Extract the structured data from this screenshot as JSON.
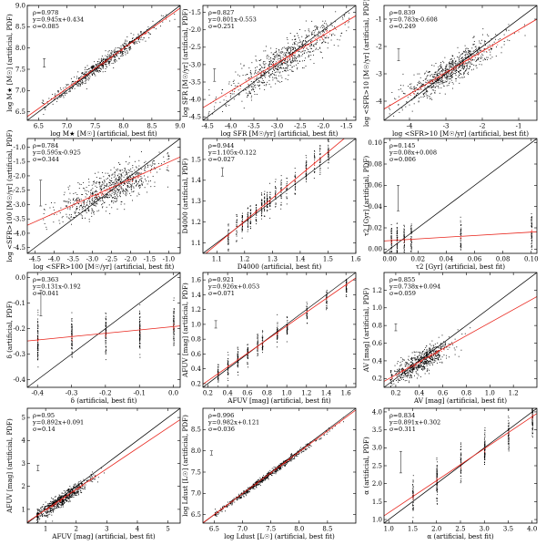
{
  "chart_data": [
    {
      "id": "p1",
      "type": "scatter",
      "title": "",
      "xlabel": "log M★ [M☉] (artificial, best fit)",
      "ylabel": "log M★ [M☉] (artificial, PDF)",
      "xlim": [
        6.3,
        9.0
      ],
      "ylim": [
        6.3,
        9.0
      ],
      "xticks": [
        6.5,
        7.0,
        7.5,
        8.0,
        8.5,
        9.0
      ],
      "yticks": [
        6.5,
        7.0,
        7.5,
        8.0,
        8.5,
        9.0
      ],
      "stats": [
        "ρ=0.978",
        "y=0.945x+0.434",
        "σ=0.085"
      ],
      "fit": {
        "slope": 0.945,
        "intercept": 0.434
      },
      "cloud": {
        "x_center": 7.6,
        "x_spread": 0.45,
        "scatter": 0.08,
        "clip_min": 6.55,
        "clip_max": 8.9,
        "n": 650,
        "kind": "normal"
      },
      "errorbar": {
        "x": 6.6,
        "y": 7.65,
        "dy": 0.1
      }
    },
    {
      "id": "p2",
      "type": "scatter",
      "title": "",
      "xlabel": "log SFR [M☉/yr] (artificial, best fit)",
      "ylabel": "log SFR [M☉/yr] (artificial, PDF)",
      "xlim": [
        -4.6,
        -1.3
      ],
      "ylim": [
        -4.6,
        -1.3
      ],
      "xticks": [
        -4.5,
        -4.0,
        -3.5,
        -3.0,
        -2.5,
        -2.0,
        -1.5
      ],
      "yticks": [
        -4.5,
        -4.0,
        -3.5,
        -3.0,
        -2.5,
        -2.0,
        -1.5
      ],
      "stats": [
        "ρ=0.827",
        "y=0.801x-0.553",
        "σ=0.251"
      ],
      "fit": {
        "slope": 0.801,
        "intercept": -0.553
      },
      "cloud": {
        "x_center": -2.9,
        "x_spread": 0.6,
        "scatter": 0.25,
        "clip_min": -4.5,
        "clip_max": -1.45,
        "n": 800,
        "kind": "normal"
      },
      "errorbar": {
        "x": -4.35,
        "y": -3.3,
        "dy": 0.18
      }
    },
    {
      "id": "p3",
      "type": "scatter",
      "title": "",
      "xlabel": "log <SFR>10 [M☉/yr] (artificial, best fit)",
      "ylabel": "log <SFR>10 [M☉/yr] (artificial, PDF)",
      "xlim": [
        -4.7,
        -0.5
      ],
      "ylim": [
        -4.7,
        -0.5
      ],
      "xticks": [
        -4,
        -3,
        -2,
        -1
      ],
      "yticks": [
        -4,
        -3,
        -2,
        -1
      ],
      "stats": [
        "ρ=0.839",
        "y=0.783x-0.608",
        "σ=0.249"
      ],
      "fit": {
        "slope": 0.783,
        "intercept": -0.608
      },
      "cloud": {
        "x_center": -2.9,
        "x_spread": 0.65,
        "scatter": 0.25,
        "clip_min": -4.6,
        "clip_max": -0.8,
        "n": 800,
        "kind": "normal"
      },
      "errorbar": {
        "x": -4.3,
        "y": -2.3,
        "dy": 0.22
      }
    },
    {
      "id": "p4",
      "type": "scatter",
      "title": "",
      "xlabel": "log <SFR>100 [M☉/yr] (artificial, best fit)",
      "ylabel": "log <SFR>100 [M☉/yr] (artificial, PDF)",
      "xlim": [
        -4.7,
        -0.7
      ],
      "ylim": [
        -4.7,
        -0.7
      ],
      "xticks": [
        -4.5,
        -4.0,
        -3.5,
        -3.0,
        -2.5,
        -2.0,
        -1.5,
        -1.0
      ],
      "yticks": [
        -4.5,
        -4.0,
        -3.5,
        -3.0,
        -2.5,
        -2.0,
        -1.5,
        -1.0
      ],
      "stats": [
        "ρ=0.784",
        "y=0.595x-0.925",
        "σ=0.344"
      ],
      "fit": {
        "slope": 0.595,
        "intercept": -0.925
      },
      "cloud": {
        "x_center": -2.6,
        "x_spread": 0.7,
        "scatter": 0.3,
        "clip_min": -4.3,
        "clip_max": -1.0,
        "n": 800,
        "kind": "normal"
      },
      "errorbar": {
        "x": -4.35,
        "y": -2.6,
        "dy": 0.45
      }
    },
    {
      "id": "p5",
      "type": "scatter",
      "title": "",
      "xlabel": "D4000 (artificial, best fit)",
      "ylabel": "D4000 (artificial, PDF)",
      "xlim": [
        1.05,
        1.6
      ],
      "ylim": [
        1.05,
        1.6
      ],
      "xticks": [
        1.1,
        1.2,
        1.3,
        1.4,
        1.5,
        1.6
      ],
      "yticks": [
        1.1,
        1.2,
        1.3,
        1.4,
        1.5
      ],
      "stats": [
        "ρ=0.944",
        "y=1.105x-0.122",
        "σ=0.027"
      ],
      "fit": {
        "slope": 1.105,
        "intercept": -0.122
      },
      "cloud": {
        "columns": [
          1.14,
          1.17,
          1.19,
          1.21,
          1.22,
          1.24,
          1.26,
          1.27,
          1.28,
          1.29,
          1.31,
          1.33,
          1.35,
          1.38,
          1.42,
          1.45,
          1.47,
          1.5
        ],
        "scatter": 0.03,
        "n": 600,
        "kind": "columns"
      },
      "errorbar": {
        "x": 1.12,
        "y": 1.44,
        "dy": 0.02
      }
    },
    {
      "id": "p6",
      "type": "scatter",
      "title": "",
      "xlabel": "τ2 [Gyr] (artificial, best fit)",
      "ylabel": "τ2 [Gyr] (artificial, PDF)",
      "xlim": [
        -0.004,
        0.104
      ],
      "ylim": [
        -0.004,
        0.104
      ],
      "xticks": [
        0.0,
        0.02,
        0.04,
        0.06,
        0.08,
        0.1
      ],
      "yticks": [
        0.0,
        0.02,
        0.04,
        0.06,
        0.08,
        0.1
      ],
      "stats": [
        "ρ=0.145",
        "y=0.08x+0.008",
        "σ=0.006"
      ],
      "fit": {
        "slope": 0.08,
        "intercept": 0.008
      },
      "cloud": {
        "columns": [
          0.001,
          0.005,
          0.01,
          0.015,
          0.05,
          0.1
        ],
        "scatter": 0.008,
        "n": 320,
        "kind": "columns"
      },
      "errorbar": {
        "x": 0.006,
        "y": 0.048,
        "dy": 0.012
      }
    },
    {
      "id": "p7",
      "type": "scatter",
      "title": "",
      "xlabel": "δ (artificial, best fit)",
      "ylabel": "δ (artificial, PDF)",
      "xlim": [
        -0.43,
        0.02
      ],
      "ylim": [
        -0.43,
        0.02
      ],
      "xticks": [
        -0.4,
        -0.3,
        -0.2,
        -0.1,
        0.0
      ],
      "yticks": [
        -0.4,
        -0.3,
        -0.2,
        -0.1,
        0.0
      ],
      "stats": [
        "ρ=0.363",
        "y=0.131x-0.192",
        "σ=0.041"
      ],
      "fit": {
        "slope": 0.131,
        "intercept": -0.192
      },
      "cloud": {
        "columns": [
          -0.4,
          -0.3,
          -0.2,
          -0.1,
          0.0
        ],
        "scatter": 0.04,
        "n": 420,
        "kind": "columns"
      },
      "errorbar": {
        "x": -0.39,
        "y": -0.1,
        "dy": 0.05
      }
    },
    {
      "id": "p8",
      "type": "scatter",
      "title": "",
      "xlabel": "AFUV [mag] (artificial, best fit)",
      "ylabel": "AFUV [mag] (artificial, PDF)",
      "xlim": [
        0.15,
        1.7
      ],
      "ylim": [
        0.15,
        1.7
      ],
      "xticks": [
        0.2,
        0.4,
        0.6,
        0.8,
        1.0,
        1.2,
        1.4,
        1.6
      ],
      "yticks": [
        0.2,
        0.4,
        0.6,
        0.8,
        1.0,
        1.2,
        1.4,
        1.6
      ],
      "stats": [
        "ρ=0.921",
        "y=0.926x+0.053",
        "σ=0.071"
      ],
      "fit": {
        "slope": 0.926,
        "intercept": 0.053
      },
      "cloud": {
        "columns": [
          0.3,
          0.4,
          0.5,
          0.6,
          0.7,
          0.75,
          0.9,
          1.0,
          1.2,
          1.4,
          1.6
        ],
        "scatter": 0.07,
        "n": 500,
        "kind": "columns"
      },
      "errorbar": {
        "x": 0.28,
        "y": 1.0,
        "dy": 0.05
      }
    },
    {
      "id": "p9",
      "type": "scatter",
      "title": "",
      "xlabel": "AV [mag] (artificial, best fit)",
      "ylabel": "AV [mag] (artificial, PDF)",
      "xlim": [
        0.1,
        1.4
      ],
      "ylim": [
        0.1,
        1.4
      ],
      "xticks": [
        0.2,
        0.4,
        0.6,
        0.8,
        1.0,
        1.2
      ],
      "yticks": [
        0.2,
        0.4,
        0.6,
        0.8,
        1.0,
        1.2
      ],
      "stats": [
        "ρ=0.855",
        "y=0.738x+0.094",
        "σ=0.059"
      ],
      "fit": {
        "slope": 0.738,
        "intercept": 0.094
      },
      "cloud": {
        "x_center": 0.4,
        "x_spread": 0.13,
        "scatter": 0.06,
        "clip_min": 0.15,
        "clip_max": 1.0,
        "n": 700,
        "kind": "normal"
      },
      "errorbar": {
        "x": 0.2,
        "y": 0.78,
        "dy": 0.04
      }
    },
    {
      "id": "p10",
      "type": "scatter",
      "title": "",
      "xlabel": "AFUV [mag] (artificial, best fit)",
      "ylabel": "AFUV [mag] (artificial, PDF)",
      "xlim": [
        0.4,
        5.4
      ],
      "ylim": [
        0.4,
        5.4
      ],
      "xticks": [
        1,
        2,
        3,
        4,
        5
      ],
      "yticks": [
        1,
        2,
        3,
        4,
        5
      ],
      "stats": [
        "ρ=0.95",
        "y=0.892x+0.091",
        "σ=0.14"
      ],
      "fit": {
        "slope": 0.892,
        "intercept": 0.091
      },
      "cloud": {
        "x_center": 1.5,
        "x_spread": 0.5,
        "scatter": 0.14,
        "clip_min": 0.7,
        "clip_max": 5.0,
        "n": 700,
        "kind": "normal"
      },
      "errorbar": {
        "x": 0.75,
        "y": 2.8,
        "dy": 0.12
      }
    },
    {
      "id": "p11",
      "type": "scatter",
      "title": "",
      "xlabel": "log Ldust [L☉] (artificial, best fit)",
      "ylabel": "log Ldust [L☉] (artificial, PDF)",
      "xlim": [
        6.3,
        9.0
      ],
      "ylim": [
        6.3,
        9.0
      ],
      "xticks": [
        6.5,
        7.0,
        7.5,
        8.0,
        8.5
      ],
      "yticks": [
        6.5,
        7.0,
        7.5,
        8.0,
        8.5
      ],
      "stats": [
        "ρ=0.996",
        "y=0.982x+0.121",
        "σ=0.036"
      ],
      "fit": {
        "slope": 0.982,
        "intercept": 0.121
      },
      "cloud": {
        "x_center": 7.4,
        "x_spread": 0.45,
        "scatter": 0.035,
        "clip_min": 6.5,
        "clip_max": 8.8,
        "n": 650,
        "kind": "normal"
      },
      "errorbar": {
        "x": 6.45,
        "y": 7.95,
        "dy": 0.05
      }
    },
    {
      "id": "p12",
      "type": "scatter",
      "title": "",
      "xlabel": "α (artificial, best fit)",
      "ylabel": "α (artificial, PDF)",
      "xlim": [
        0.9,
        4.1
      ],
      "ylim": [
        0.9,
        4.1
      ],
      "xticks": [
        1.0,
        1.5,
        2.0,
        2.5,
        3.0,
        3.5,
        4.0
      ],
      "yticks": [
        1.0,
        1.5,
        2.0,
        2.5,
        3.0,
        3.5,
        4.0
      ],
      "stats": [
        "ρ=0.834",
        "y=0.891x+0.302",
        "σ=0.311"
      ],
      "fit": {
        "slope": 0.891,
        "intercept": 0.302
      },
      "cloud": {
        "columns": [
          1.5,
          2.0,
          2.5,
          3.0,
          3.5,
          4.0
        ],
        "scatter": 0.25,
        "n": 420,
        "kind": "columns"
      },
      "errorbar": {
        "x": 1.25,
        "y": 2.6,
        "dy": 0.3
      }
    }
  ]
}
